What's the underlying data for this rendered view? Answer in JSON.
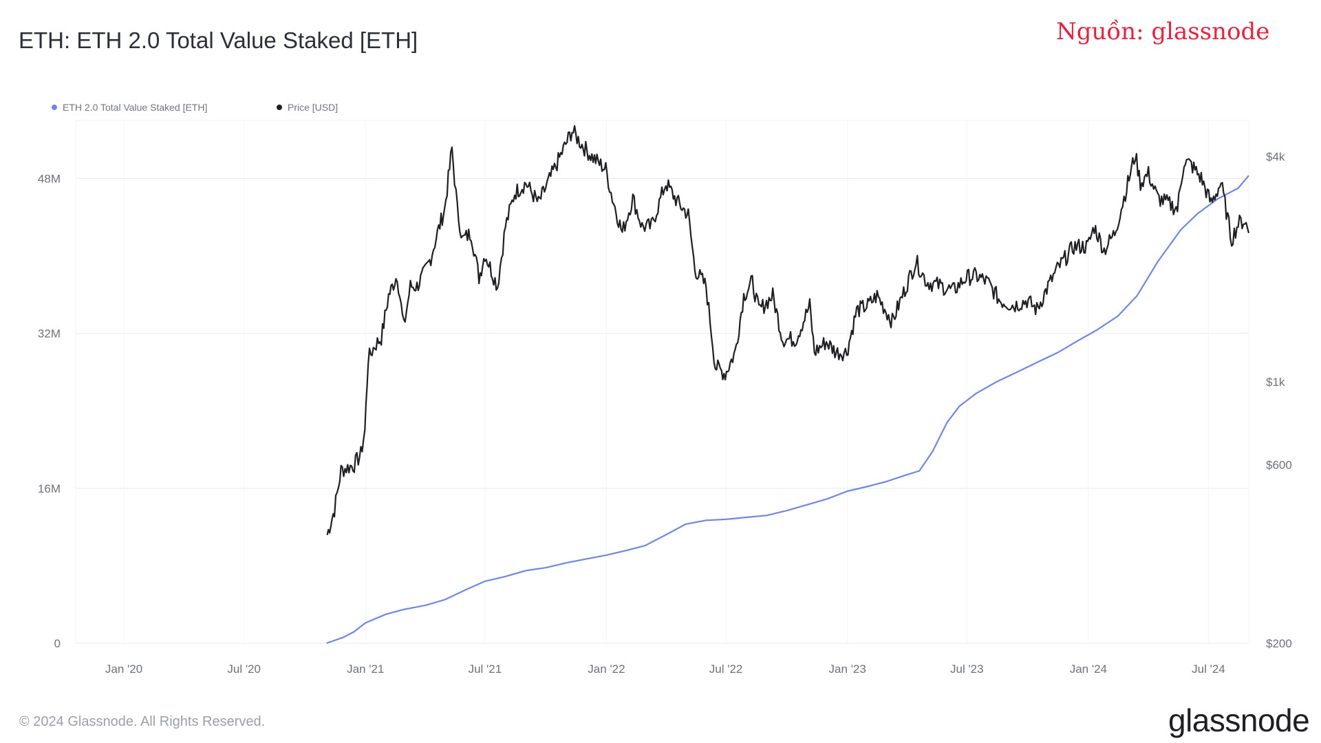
{
  "header": {
    "title": "ETH: ETH 2.0 Total Value Staked [ETH]",
    "source_note": "Nguồn: glassnode"
  },
  "footer": {
    "copyright": "© 2024 Glassnode. All Rights Reserved.",
    "brand": "glassnode"
  },
  "colors": {
    "staked": "#6f86e6",
    "price": "#1e1f22",
    "source_note": "#e8213d",
    "grid": "#e9ebef",
    "axis_text": "#6b7079"
  },
  "chart_data": {
    "type": "line",
    "title": "ETH: ETH 2.0 Total Value Staked [ETH]",
    "legend_position": "top-left",
    "grid": true,
    "x_ticks": [
      "Jan '20",
      "Jul '20",
      "Jan '21",
      "Jul '21",
      "Jan '22",
      "Jul '22",
      "Jan '23",
      "Jul '23",
      "Jan '24",
      "Jul '24"
    ],
    "x_range": [
      "2019-10-20",
      "2024-08-31"
    ],
    "y_left": {
      "ticks": [
        "0",
        "16M",
        "32M",
        "48M"
      ],
      "tick_values": [
        0,
        16000000,
        32000000,
        48000000
      ],
      "range": [
        0,
        54000000
      ]
    },
    "y_right": {
      "scale": "log",
      "ticks": [
        "$200",
        "$600",
        "$1k",
        "$4k"
      ],
      "tick_values": [
        200,
        600,
        1000,
        4000
      ],
      "range": [
        200,
        5000
      ]
    },
    "series": [
      {
        "name": "ETH 2.0 Total Value Staked [ETH]",
        "axis": "left",
        "points": [
          [
            "2020-11-03",
            0
          ],
          [
            "2020-11-28",
            600000
          ],
          [
            "2020-12-15",
            1200000
          ],
          [
            "2021-01-01",
            2100000
          ],
          [
            "2021-02-01",
            3000000
          ],
          [
            "2021-03-01",
            3500000
          ],
          [
            "2021-04-01",
            3900000
          ],
          [
            "2021-05-01",
            4500000
          ],
          [
            "2021-06-01",
            5500000
          ],
          [
            "2021-07-01",
            6400000
          ],
          [
            "2021-08-01",
            6900000
          ],
          [
            "2021-09-01",
            7500000
          ],
          [
            "2021-10-01",
            7800000
          ],
          [
            "2021-11-01",
            8300000
          ],
          [
            "2021-12-01",
            8700000
          ],
          [
            "2022-01-01",
            9100000
          ],
          [
            "2022-02-01",
            9600000
          ],
          [
            "2022-03-01",
            10100000
          ],
          [
            "2022-04-01",
            11200000
          ],
          [
            "2022-05-01",
            12300000
          ],
          [
            "2022-06-01",
            12700000
          ],
          [
            "2022-07-01",
            12800000
          ],
          [
            "2022-08-01",
            13000000
          ],
          [
            "2022-09-01",
            13200000
          ],
          [
            "2022-10-01",
            13700000
          ],
          [
            "2022-11-01",
            14300000
          ],
          [
            "2022-12-01",
            14900000
          ],
          [
            "2023-01-01",
            15700000
          ],
          [
            "2023-02-01",
            16200000
          ],
          [
            "2023-03-01",
            16700000
          ],
          [
            "2023-04-01",
            17400000
          ],
          [
            "2023-04-20",
            17800000
          ],
          [
            "2023-05-10",
            19800000
          ],
          [
            "2023-06-01",
            22800000
          ],
          [
            "2023-06-20",
            24500000
          ],
          [
            "2023-07-15",
            25800000
          ],
          [
            "2023-08-15",
            27000000
          ],
          [
            "2023-09-15",
            28000000
          ],
          [
            "2023-10-15",
            29000000
          ],
          [
            "2023-11-15",
            30000000
          ],
          [
            "2023-12-15",
            31200000
          ],
          [
            "2024-01-15",
            32400000
          ],
          [
            "2024-02-15",
            33800000
          ],
          [
            "2024-03-15",
            35900000
          ],
          [
            "2024-04-15",
            39400000
          ],
          [
            "2024-05-01",
            40900000
          ],
          [
            "2024-05-20",
            42700000
          ],
          [
            "2024-06-15",
            44400000
          ],
          [
            "2024-07-15",
            45900000
          ],
          [
            "2024-08-15",
            47000000
          ],
          [
            "2024-08-31",
            48300000
          ]
        ]
      },
      {
        "name": "Price [USD]",
        "axis": "right",
        "points": [
          [
            "2020-11-04",
            390
          ],
          [
            "2020-11-15",
            455
          ],
          [
            "2020-11-25",
            580
          ],
          [
            "2020-12-05",
            590
          ],
          [
            "2020-12-15",
            600
          ],
          [
            "2020-12-25",
            640
          ],
          [
            "2020-12-31",
            740
          ],
          [
            "2021-01-05",
            1150
          ],
          [
            "2021-01-15",
            1250
          ],
          [
            "2021-01-25",
            1310
          ],
          [
            "2021-02-05",
            1700
          ],
          [
            "2021-02-18",
            1930
          ],
          [
            "2021-02-28",
            1400
          ],
          [
            "2021-03-10",
            1800
          ],
          [
            "2021-03-20",
            1800
          ],
          [
            "2021-03-31",
            1950
          ],
          [
            "2021-04-10",
            2150
          ],
          [
            "2021-04-20",
            2500
          ],
          [
            "2021-05-01",
            2900
          ],
          [
            "2021-05-12",
            4200
          ],
          [
            "2021-05-20",
            2900
          ],
          [
            "2021-05-28",
            2400
          ],
          [
            "2021-06-10",
            2500
          ],
          [
            "2021-06-22",
            1900
          ],
          [
            "2021-07-01",
            2200
          ],
          [
            "2021-07-20",
            1800
          ],
          [
            "2021-08-01",
            2600
          ],
          [
            "2021-08-15",
            3200
          ],
          [
            "2021-09-01",
            3400
          ],
          [
            "2021-09-20",
            3000
          ],
          [
            "2021-10-01",
            3300
          ],
          [
            "2021-10-20",
            3900
          ],
          [
            "2021-11-10",
            4700
          ],
          [
            "2021-11-25",
            4300
          ],
          [
            "2021-12-10",
            4000
          ],
          [
            "2021-12-31",
            3700
          ],
          [
            "2022-01-10",
            3100
          ],
          [
            "2022-01-25",
            2500
          ],
          [
            "2022-02-10",
            3100
          ],
          [
            "2022-02-24",
            2600
          ],
          [
            "2022-03-10",
            2600
          ],
          [
            "2022-04-01",
            3400
          ],
          [
            "2022-04-20",
            3000
          ],
          [
            "2022-05-05",
            2800
          ],
          [
            "2022-05-15",
            2000
          ],
          [
            "2022-06-01",
            1800
          ],
          [
            "2022-06-15",
            1100
          ],
          [
            "2022-06-30",
            1050
          ],
          [
            "2022-07-15",
            1200
          ],
          [
            "2022-07-28",
            1700
          ],
          [
            "2022-08-10",
            1850
          ],
          [
            "2022-08-20",
            1550
          ],
          [
            "2022-09-10",
            1700
          ],
          [
            "2022-09-25",
            1300
          ],
          [
            "2022-10-15",
            1300
          ],
          [
            "2022-11-05",
            1600
          ],
          [
            "2022-11-12",
            1200
          ],
          [
            "2022-11-30",
            1280
          ],
          [
            "2022-12-15",
            1200
          ],
          [
            "2022-12-31",
            1200
          ],
          [
            "2023-01-15",
            1550
          ],
          [
            "2023-02-01",
            1600
          ],
          [
            "2023-02-15",
            1700
          ],
          [
            "2023-03-10",
            1450
          ],
          [
            "2023-03-31",
            1800
          ],
          [
            "2023-04-15",
            2100
          ],
          [
            "2023-05-01",
            1850
          ],
          [
            "2023-05-25",
            1800
          ],
          [
            "2023-06-10",
            1750
          ],
          [
            "2023-06-30",
            1900
          ],
          [
            "2023-07-15",
            1920
          ],
          [
            "2023-08-01",
            1850
          ],
          [
            "2023-08-20",
            1650
          ],
          [
            "2023-09-10",
            1600
          ],
          [
            "2023-09-30",
            1650
          ],
          [
            "2023-10-15",
            1560
          ],
          [
            "2023-11-01",
            1800
          ],
          [
            "2023-11-15",
            2000
          ],
          [
            "2023-12-10",
            2300
          ],
          [
            "2023-12-31",
            2300
          ],
          [
            "2024-01-10",
            2600
          ],
          [
            "2024-01-25",
            2250
          ],
          [
            "2024-02-10",
            2500
          ],
          [
            "2024-02-28",
            3300
          ],
          [
            "2024-03-12",
            4050
          ],
          [
            "2024-03-20",
            3400
          ],
          [
            "2024-04-01",
            3600
          ],
          [
            "2024-04-15",
            3100
          ],
          [
            "2024-05-01",
            3000
          ],
          [
            "2024-05-15",
            2900
          ],
          [
            "2024-05-25",
            3900
          ],
          [
            "2024-06-05",
            3800
          ],
          [
            "2024-06-20",
            3500
          ],
          [
            "2024-07-05",
            3000
          ],
          [
            "2024-07-20",
            3400
          ],
          [
            "2024-08-05",
            2400
          ],
          [
            "2024-08-15",
            2650
          ],
          [
            "2024-08-25",
            2700
          ],
          [
            "2024-08-31",
            2500
          ]
        ]
      }
    ]
  }
}
